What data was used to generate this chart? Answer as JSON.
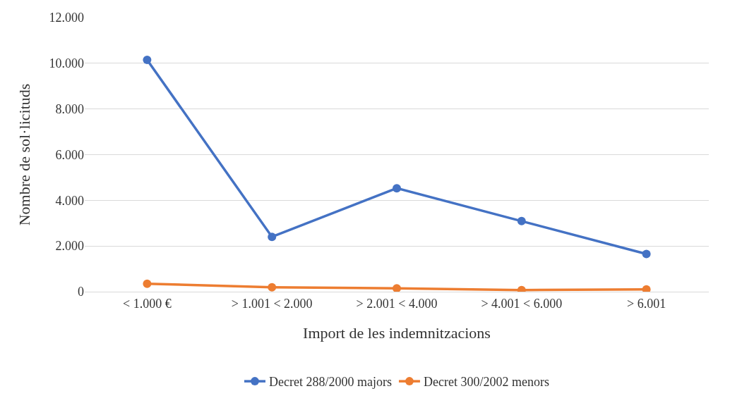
{
  "chart_data": {
    "type": "line",
    "xlabel": "Import de les indemnitzacions",
    "ylabel": "Nombre de sol·licituds",
    "categories": [
      "< 1.000 €",
      "> 1.001 < 2.000",
      "> 2.001 < 4.000",
      "> 4.001 < 6.000",
      "> 6.001"
    ],
    "series": [
      {
        "name": "Decret 288/2000 majors",
        "color": "#4472c4",
        "values": [
          10150,
          2400,
          4530,
          3090,
          1650
        ]
      },
      {
        "name": "Decret 300/2002 menors",
        "color": "#ed7d31",
        "values": [
          350,
          190,
          150,
          70,
          100
        ]
      }
    ],
    "ylim": [
      0,
      12000
    ],
    "yticks": [
      {
        "value": 0,
        "label": "0"
      },
      {
        "value": 2000,
        "label": "2.000"
      },
      {
        "value": 4000,
        "label": "4.000"
      },
      {
        "value": 6000,
        "label": "6.000"
      },
      {
        "value": 8000,
        "label": "8.000"
      },
      {
        "value": 10000,
        "label": "10.000"
      },
      {
        "value": 12000,
        "label": "12.000"
      }
    ],
    "grid": "y",
    "legend": "bottom",
    "marker": "circle",
    "line_style": "solid"
  }
}
